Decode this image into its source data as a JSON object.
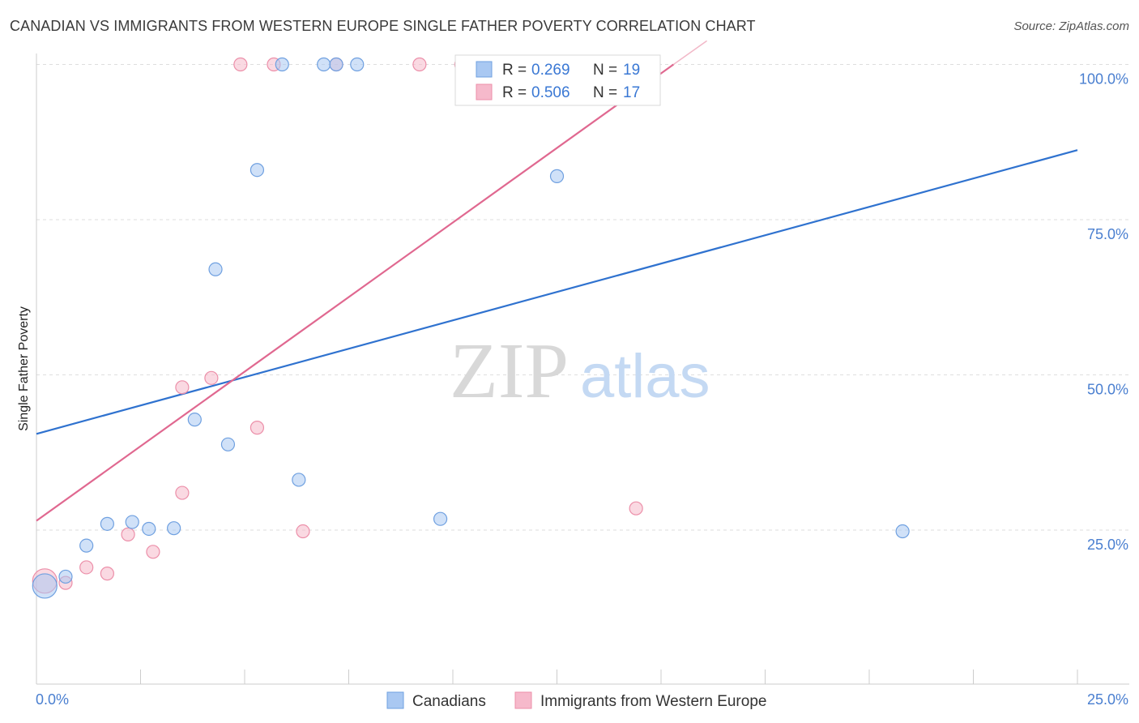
{
  "header": {
    "title": "CANADIAN VS IMMIGRANTS FROM WESTERN EUROPE SINGLE FATHER POVERTY CORRELATION CHART",
    "source": "Source: ZipAtlas.com"
  },
  "watermark": {
    "zip": "ZIP",
    "atlas": "atlas"
  },
  "legend_box": {
    "rows": [
      {
        "r_label": "R =",
        "r_value": "0.269",
        "n_label": "N =",
        "n_value": "19",
        "color": "#a9c8f2"
      },
      {
        "r_label": "R =",
        "r_value": "0.506",
        "n_label": "N =",
        "n_value": "17",
        "color": "#f6b9cb"
      }
    ]
  },
  "chart_data": {
    "type": "scatter",
    "title": "CANADIAN VS IMMIGRANTS FROM WESTERN EUROPE SINGLE FATHER POVERTY CORRELATION CHART",
    "xlabel": "",
    "ylabel": "Single Father Poverty",
    "xlim": [
      0,
      25
    ],
    "ylim": [
      5,
      102
    ],
    "x_tick_labels": [
      "0.0%",
      "25.0%"
    ],
    "y_ticks": [
      25,
      50,
      75,
      100
    ],
    "y_tick_labels": [
      "25.0%",
      "50.0%",
      "75.0%",
      "100.0%"
    ],
    "grid": true,
    "legend_position": "bottom",
    "series": [
      {
        "name": "Canadians",
        "color": "#a9c8f2",
        "stroke": "#6fa0e0",
        "line_color": "#2f72cf",
        "trend": {
          "x": [
            0,
            25
          ],
          "y": [
            40.5,
            86.2
          ]
        },
        "points": [
          {
            "x": 0.2,
            "y": 16.0,
            "big": true
          },
          {
            "x": 0.7,
            "y": 17.5
          },
          {
            "x": 1.2,
            "y": 22.5
          },
          {
            "x": 1.7,
            "y": 26.0
          },
          {
            "x": 2.3,
            "y": 26.3
          },
          {
            "x": 2.7,
            "y": 25.2
          },
          {
            "x": 3.3,
            "y": 25.3
          },
          {
            "x": 3.8,
            "y": 42.8
          },
          {
            "x": 4.3,
            "y": 67.0
          },
          {
            "x": 4.6,
            "y": 38.8
          },
          {
            "x": 5.3,
            "y": 83.0
          },
          {
            "x": 5.9,
            "y": 100.0
          },
          {
            "x": 6.3,
            "y": 33.1
          },
          {
            "x": 6.9,
            "y": 100.0
          },
          {
            "x": 7.2,
            "y": 100.0
          },
          {
            "x": 7.7,
            "y": 100.0
          },
          {
            "x": 9.7,
            "y": 26.8
          },
          {
            "x": 12.5,
            "y": 82.0
          },
          {
            "x": 20.8,
            "y": 24.8
          }
        ]
      },
      {
        "name": "Immigrants from Western Europe",
        "color": "#f6b9cb",
        "stroke": "#ec8fa9",
        "line_color": "#e06890",
        "trend": {
          "x": [
            0,
            15.3
          ],
          "y": [
            26.5,
            100.0
          ]
        },
        "points": [
          {
            "x": 0.2,
            "y": 16.8,
            "big": true
          },
          {
            "x": 0.7,
            "y": 16.5
          },
          {
            "x": 1.2,
            "y": 19.0
          },
          {
            "x": 1.7,
            "y": 18.0
          },
          {
            "x": 2.2,
            "y": 24.3
          },
          {
            "x": 2.8,
            "y": 21.5
          },
          {
            "x": 3.5,
            "y": 31.0
          },
          {
            "x": 3.5,
            "y": 48.0
          },
          {
            "x": 4.2,
            "y": 49.5
          },
          {
            "x": 4.9,
            "y": 100.0
          },
          {
            "x": 5.3,
            "y": 41.5
          },
          {
            "x": 5.7,
            "y": 100.0
          },
          {
            "x": 6.4,
            "y": 24.8
          },
          {
            "x": 7.2,
            "y": 100.0
          },
          {
            "x": 9.2,
            "y": 100.0
          },
          {
            "x": 10.2,
            "y": 100.0
          },
          {
            "x": 14.4,
            "y": 28.5
          }
        ]
      }
    ]
  }
}
